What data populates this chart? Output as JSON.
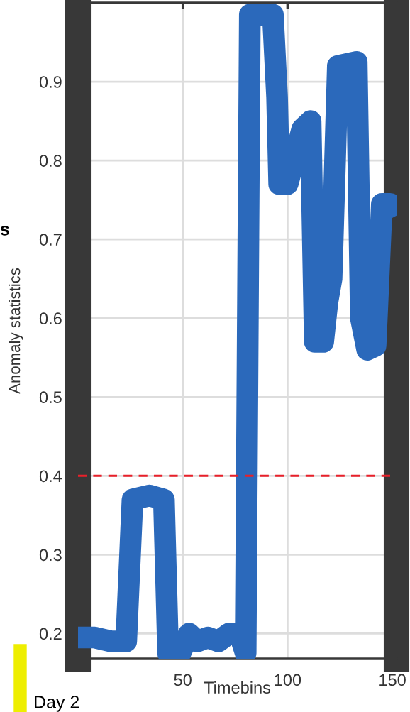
{
  "chart_data": {
    "type": "line",
    "xlabel": "Timebins",
    "ylabel": "Anomaly statistics",
    "x": [
      0,
      8,
      16,
      23,
      26,
      34,
      41,
      43,
      48,
      53,
      57,
      62,
      67,
      72,
      77,
      80,
      82,
      91,
      93,
      95,
      96,
      100,
      103,
      107,
      111,
      113,
      117,
      119,
      121,
      124,
      133,
      135,
      138,
      142,
      145,
      149,
      152
    ],
    "series": [
      {
        "color": "#2b69bb",
        "values": [
          0.195,
          0.195,
          0.19,
          0.19,
          0.37,
          0.375,
          0.37,
          0.175,
          0.17,
          0.2,
          0.19,
          0.195,
          0.19,
          0.2,
          0.2,
          0.175,
          0.985,
          0.985,
          0.985,
          0.88,
          0.77,
          0.77,
          0.8,
          0.84,
          0.85,
          0.57,
          0.57,
          0.62,
          0.65,
          0.92,
          0.925,
          0.6,
          0.56,
          0.565,
          0.745,
          0.745,
          0.73
        ]
      }
    ],
    "xlim": [
      0,
      152
    ],
    "ylim": [
      0.168,
      1.0
    ],
    "xticks": [
      50,
      100,
      150
    ],
    "yticks": [
      0.2,
      0.3,
      0.4,
      0.5,
      0.6,
      0.7,
      0.8,
      0.9
    ],
    "ref_lines": [
      {
        "axis": "y",
        "value": 0.4,
        "color": "#e8202a",
        "line_style": "dashed"
      }
    ],
    "grid": true,
    "line_style": "solid",
    "annotations": [
      "s",
      "Day 2"
    ]
  }
}
